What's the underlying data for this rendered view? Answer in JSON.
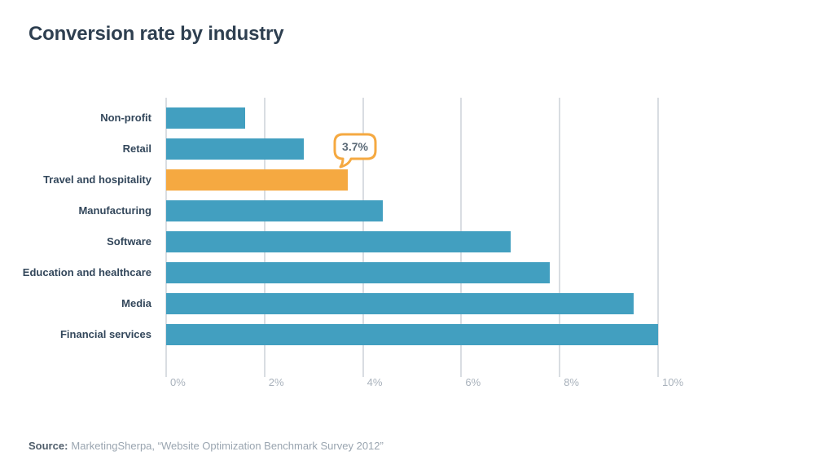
{
  "title": "Conversion rate by industry",
  "callout": {
    "value": "3.7%"
  },
  "source": {
    "label": "Source:",
    "text": "MarketingSherpa, “Website Optimization Benchmark Survey 2012”"
  },
  "chart_data": {
    "type": "bar",
    "orientation": "horizontal",
    "title": "Conversion rate by industry",
    "categories": [
      "Non-profit",
      "Retail",
      "Travel and hospitality",
      "Manufacturing",
      "Software",
      "Education and healthcare",
      "Media",
      "Financial services"
    ],
    "values": [
      1.6,
      2.8,
      3.7,
      4.4,
      7.0,
      7.8,
      9.5,
      10.0
    ],
    "unit": "%",
    "xlim": [
      0,
      10
    ],
    "x_ticks": [
      "0%",
      "2%",
      "4%",
      "6%",
      "8%",
      "10%"
    ],
    "grid": true,
    "legend": false,
    "highlight_index": 2,
    "annotation": {
      "text": "3.7%",
      "target": "Travel and hospitality"
    },
    "colors": {
      "bar": "#429fc0",
      "highlight": "#f5a941",
      "grid": "#d9dde2",
      "category_label": "#33475b",
      "tick_label": "#a9b2bc"
    },
    "source": "MarketingSherpa, “Website Optimization Benchmark Survey 2012”"
  }
}
